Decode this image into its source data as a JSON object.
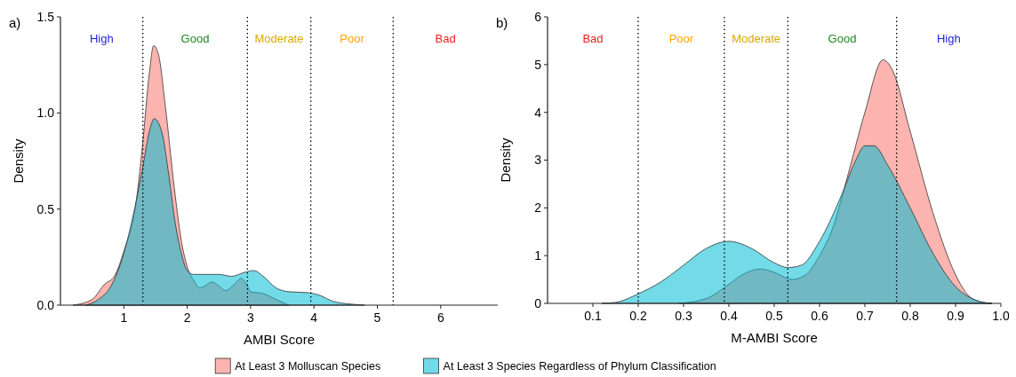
{
  "chart_data": [
    {
      "type": "area",
      "title": "a)",
      "xlabel": "AMBI Score",
      "ylabel": "Density",
      "xlim": [
        0,
        6.9
      ],
      "ylim": [
        0,
        1.5
      ],
      "xticks": [
        1,
        2,
        3,
        4,
        5,
        6
      ],
      "yticks": [
        {
          "value": 0,
          "label": "0.0"
        },
        {
          "value": 0.5,
          "label": "0.5"
        },
        {
          "value": 1,
          "label": "1.0"
        },
        {
          "value": 1.5,
          "label": "1.5"
        }
      ],
      "legend": "bottom",
      "series": [
        {
          "name": "At Least 3 Molluscan Species",
          "color": "#f8766d",
          "x": [
            0.2,
            0.5,
            0.7,
            0.85,
            1.0,
            1.2,
            1.3,
            1.4,
            1.47,
            1.55,
            1.65,
            1.8,
            1.9,
            2.0,
            2.1,
            2.2,
            2.4,
            2.5,
            2.6,
            2.75,
            2.85,
            2.95,
            3.0,
            3.2,
            3.4,
            3.6
          ],
          "values": [
            0,
            0.03,
            0.11,
            0.15,
            0.28,
            0.55,
            0.85,
            1.2,
            1.35,
            1.3,
            1.05,
            0.6,
            0.35,
            0.2,
            0.13,
            0.09,
            0.12,
            0.1,
            0.075,
            0.11,
            0.14,
            0.1,
            0.07,
            0.06,
            0.03,
            0
          ]
        },
        {
          "name": "At Least 3 Species Regardless of Phylum Classification",
          "color": "#00bcd4",
          "x": [
            0.4,
            0.6,
            0.8,
            1.0,
            1.2,
            1.3,
            1.4,
            1.48,
            1.6,
            1.7,
            1.8,
            1.9,
            2.0,
            2.1,
            2.5,
            2.7,
            2.9,
            3.05,
            3.2,
            3.4,
            3.6,
            3.9,
            4.1,
            4.3,
            4.6,
            4.8
          ],
          "values": [
            0,
            0.03,
            0.1,
            0.27,
            0.55,
            0.72,
            0.9,
            0.97,
            0.9,
            0.7,
            0.45,
            0.28,
            0.18,
            0.16,
            0.16,
            0.15,
            0.17,
            0.18,
            0.15,
            0.09,
            0.07,
            0.065,
            0.05,
            0.02,
            0.005,
            0
          ]
        }
      ],
      "ref_lines": [
        {
          "axis": "x",
          "value": 1.3
        },
        {
          "axis": "x",
          "value": 2.95
        },
        {
          "axis": "x",
          "value": 3.95
        },
        {
          "axis": "x",
          "value": 5.25
        }
      ],
      "annotations": [
        "High",
        "Good",
        "Moderate",
        "Poor",
        "Bad"
      ]
    },
    {
      "type": "area",
      "title": "b)",
      "xlabel": "M-AMBI Score",
      "ylabel": "Density",
      "xlim": [
        0,
        1.0
      ],
      "ylim": [
        0,
        6
      ],
      "xticks": [
        0.1,
        0.2,
        0.3,
        0.4,
        0.5,
        0.6,
        0.7,
        0.8,
        0.9,
        {
          "value": 1,
          "label": "1.0"
        }
      ],
      "yticks": [
        0,
        1,
        2,
        3,
        4,
        5,
        6
      ],
      "series": [
        {
          "color": "#f8766d",
          "x": [
            0.29,
            0.35,
            0.4,
            0.43,
            0.47,
            0.5,
            0.54,
            0.57,
            0.6,
            0.63,
            0.66,
            0.7,
            0.74,
            0.76,
            0.8,
            0.85,
            0.9,
            0.93,
            0.96,
            0.98
          ],
          "values": [
            0,
            0.1,
            0.4,
            0.6,
            0.72,
            0.65,
            0.5,
            0.6,
            1.0,
            1.6,
            2.6,
            4.0,
            5.1,
            4.9,
            3.6,
            1.9,
            0.6,
            0.15,
            0.02,
            0
          ]
        },
        {
          "color": "#00bcd4",
          "x": [
            0.12,
            0.15,
            0.2,
            0.25,
            0.3,
            0.35,
            0.4,
            0.45,
            0.5,
            0.53,
            0.56,
            0.6,
            0.65,
            0.68,
            0.7,
            0.72,
            0.75,
            0.8,
            0.85,
            0.9,
            0.95,
            0.98
          ],
          "values": [
            0,
            0.02,
            0.2,
            0.45,
            0.8,
            1.15,
            1.3,
            1.15,
            0.85,
            0.75,
            0.8,
            1.3,
            2.3,
            3.0,
            3.3,
            3.3,
            2.9,
            2.0,
            1.05,
            0.35,
            0.05,
            0
          ]
        }
      ],
      "ref_lines": [
        {
          "axis": "x",
          "value": 0.2
        },
        {
          "axis": "x",
          "value": 0.39
        },
        {
          "axis": "x",
          "value": 0.53
        },
        {
          "axis": "x",
          "value": 0.77
        }
      ],
      "annotations": [
        "Bad",
        "Poor",
        "Moderate",
        "Good",
        "High"
      ]
    }
  ]
}
